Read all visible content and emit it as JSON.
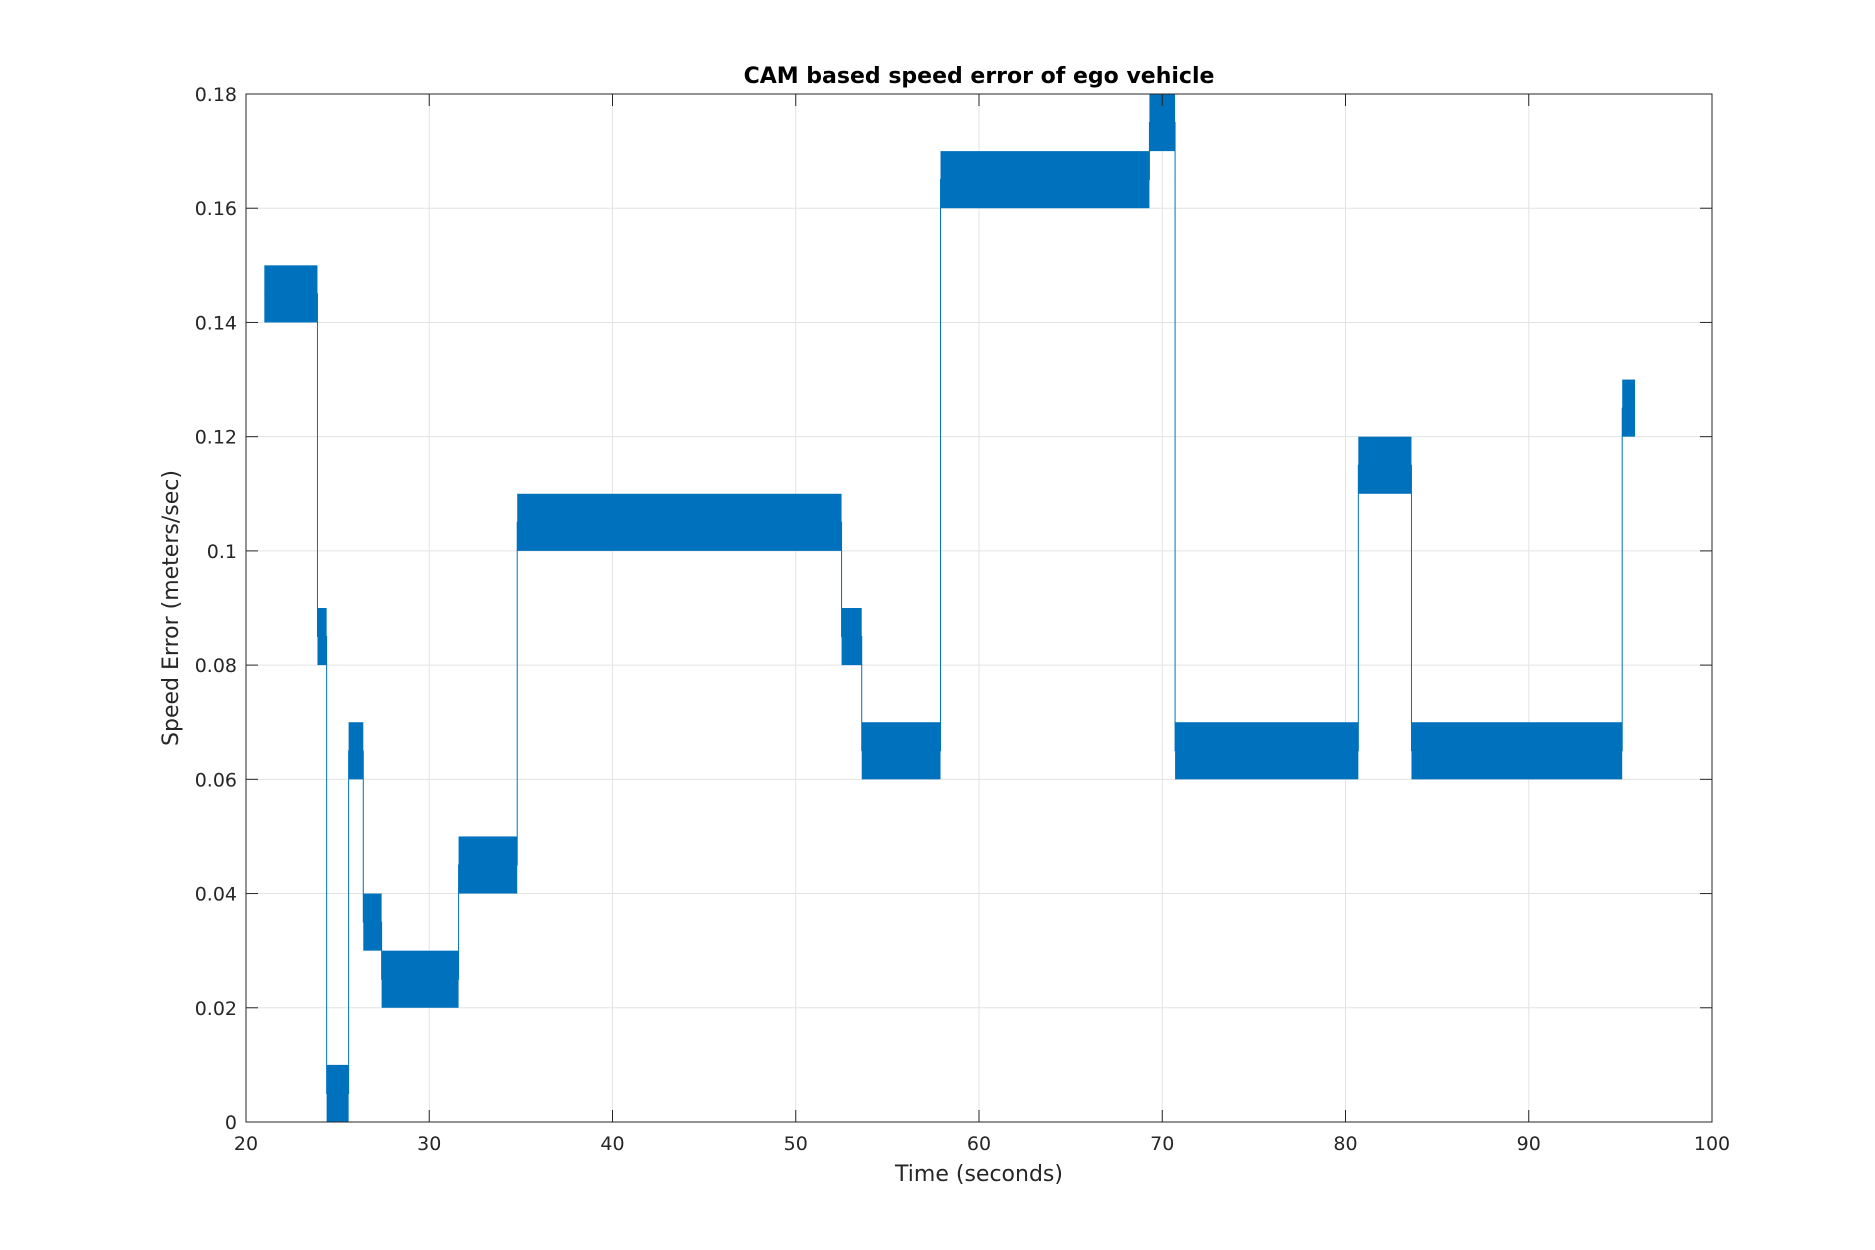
{
  "chart_data": {
    "type": "line",
    "title": "CAM based speed error of ego vehicle",
    "xlabel": "Time (seconds)",
    "ylabel": "Speed Error (meters/sec)",
    "xlim": [
      20,
      100
    ],
    "ylim": [
      0,
      0.18
    ],
    "xticks": [
      "20",
      "30",
      "40",
      "50",
      "60",
      "70",
      "80",
      "90",
      "100"
    ],
    "yticks": [
      "0",
      "0.02",
      "0.04",
      "0.06",
      "0.08",
      "0.1",
      "0.12",
      "0.14",
      "0.16",
      "0.18"
    ],
    "grid": true,
    "legend": "none",
    "line_color": "#0072BD",
    "series": [
      {
        "values": [
          {
            "x_start": 21.0,
            "x_end": 23.9,
            "low": 0.14,
            "high": 0.15
          },
          {
            "x_start": 23.9,
            "x_end": 24.4,
            "low": 0.08,
            "high": 0.09
          },
          {
            "x_start": 24.4,
            "x_end": 25.6,
            "low": 0.0,
            "high": 0.01
          },
          {
            "x_start": 25.6,
            "x_end": 26.4,
            "low": 0.06,
            "high": 0.07
          },
          {
            "x_start": 26.4,
            "x_end": 27.4,
            "low": 0.03,
            "high": 0.04
          },
          {
            "x_start": 27.4,
            "x_end": 31.6,
            "low": 0.02,
            "high": 0.03
          },
          {
            "x_start": 31.6,
            "x_end": 34.8,
            "low": 0.04,
            "high": 0.05
          },
          {
            "x_start": 34.8,
            "x_end": 52.5,
            "low": 0.1,
            "high": 0.11
          },
          {
            "x_start": 52.5,
            "x_end": 53.6,
            "low": 0.08,
            "high": 0.09
          },
          {
            "x_start": 53.6,
            "x_end": 57.9,
            "low": 0.06,
            "high": 0.07
          },
          {
            "x_start": 57.9,
            "x_end": 69.3,
            "low": 0.16,
            "high": 0.17
          },
          {
            "x_start": 69.3,
            "x_end": 70.7,
            "low": 0.17,
            "high": 0.18
          },
          {
            "x_start": 70.7,
            "x_end": 80.7,
            "low": 0.06,
            "high": 0.07
          },
          {
            "x_start": 80.7,
            "x_end": 83.6,
            "low": 0.11,
            "high": 0.12
          },
          {
            "x_start": 83.6,
            "x_end": 95.1,
            "low": 0.06,
            "high": 0.07
          },
          {
            "x_start": 95.1,
            "x_end": 95.8,
            "low": 0.12,
            "high": 0.13
          }
        ]
      }
    ]
  }
}
